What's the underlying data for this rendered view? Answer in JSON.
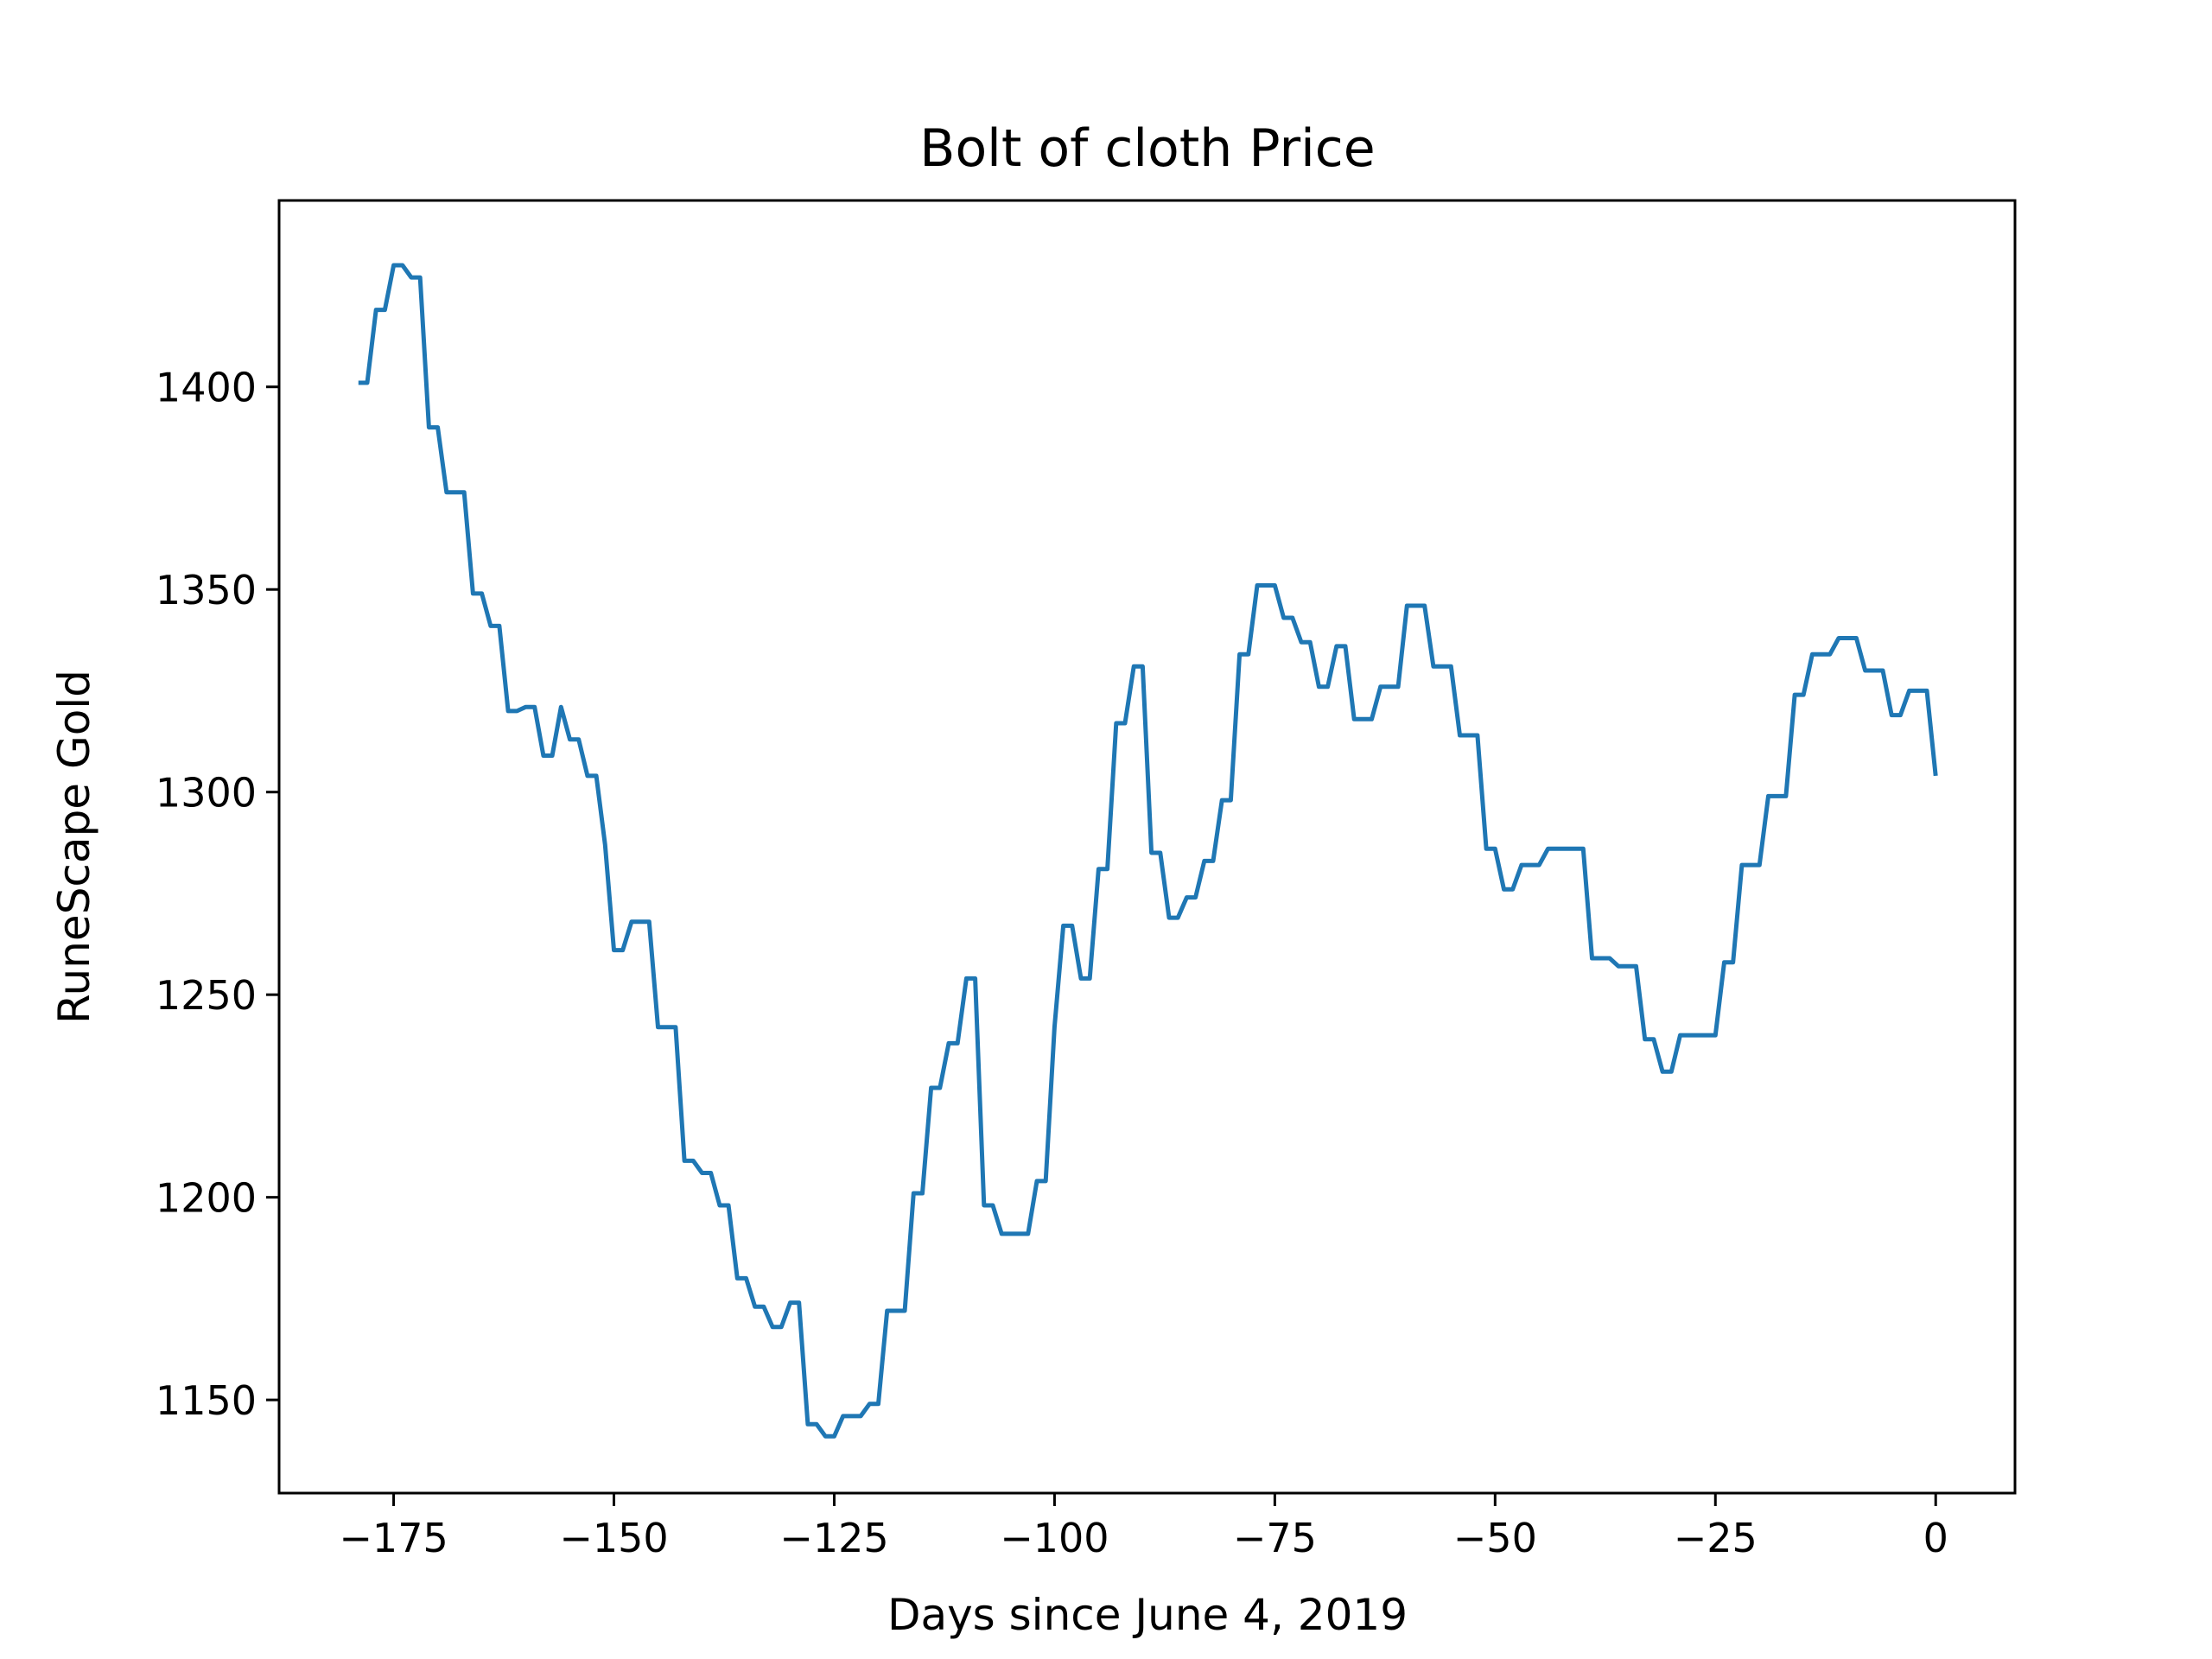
{
  "chart_data": {
    "type": "line",
    "title": "Bolt of cloth Price",
    "xlabel": "Days since June 4, 2019",
    "ylabel": "RuneScape Gold",
    "xlim": [
      -188,
      9
    ],
    "ylim": [
      1127,
      1446
    ],
    "xticks": [
      -175,
      -150,
      -125,
      -100,
      -75,
      -50,
      -25,
      0
    ],
    "xtick_labels": [
      "−175",
      "−150",
      "−125",
      "−100",
      "−75",
      "−50",
      "−25",
      "0"
    ],
    "yticks": [
      1150,
      1200,
      1250,
      1300,
      1350,
      1400
    ],
    "ytick_labels": [
      "1150",
      "1200",
      "1250",
      "1300",
      "1350",
      "1400"
    ],
    "grid": false,
    "line_color": "#1f77b4",
    "series": [
      {
        "name": "",
        "x": [
          -179,
          -178,
          -177,
          -176,
          -175,
          -174,
          -173,
          -172,
          -171,
          -170,
          -169,
          -168,
          -167,
          -166,
          -165,
          -164,
          -163,
          -162,
          -161,
          -160,
          -159,
          -158,
          -157,
          -156,
          -155,
          -154,
          -153,
          -152,
          -151,
          -150,
          -149,
          -148,
          -147,
          -146,
          -145,
          -144,
          -143,
          -142,
          -141,
          -140,
          -139,
          -138,
          -137,
          -136,
          -135,
          -134,
          -133,
          -132,
          -131,
          -130,
          -129,
          -128,
          -127,
          -126,
          -125,
          -124,
          -123,
          -122,
          -121,
          -120,
          -119,
          -118,
          -117,
          -116,
          -115,
          -114,
          -113,
          -112,
          -111,
          -110,
          -109,
          -108,
          -107,
          -106,
          -105,
          -104,
          -103,
          -102,
          -101,
          -100,
          -99,
          -98,
          -97,
          -96,
          -95,
          -94,
          -93,
          -92,
          -91,
          -90,
          -89,
          -88,
          -87,
          -86,
          -85,
          -84,
          -83,
          -82,
          -81,
          -80,
          -79,
          -78,
          -77,
          -76,
          -75,
          -74,
          -73,
          -72,
          -71,
          -70,
          -69,
          -68,
          -67,
          -66,
          -65,
          -64,
          -63,
          -62,
          -61,
          -60,
          -59,
          -58,
          -57,
          -56,
          -55,
          -54,
          -53,
          -52,
          -51,
          -50,
          -49,
          -48,
          -47,
          -46,
          -45,
          -44,
          -43,
          -42,
          -41,
          -40,
          -39,
          -38,
          -37,
          -36,
          -35,
          -34,
          -33,
          -32,
          -31,
          -30,
          -29,
          -28,
          -27,
          -26,
          -25,
          -24,
          -23,
          -22,
          -21,
          -20,
          -19,
          -18,
          -17,
          -16,
          -15,
          -14,
          -13,
          -12,
          -11,
          -10,
          -9,
          -8,
          -7,
          -6,
          -5,
          -4,
          -3,
          -2,
          -1,
          0
        ],
        "y": [
          1401,
          1401,
          1419,
          1419,
          1430,
          1430,
          1427,
          1427,
          1390,
          1390,
          1374,
          1374,
          1374,
          1349,
          1349,
          1341,
          1341,
          1320,
          1320,
          1321,
          1321,
          1309,
          1309,
          1321,
          1313,
          1313,
          1304,
          1304,
          1287,
          1261,
          1261,
          1268,
          1268,
          1268,
          1242,
          1242,
          1242,
          1209,
          1209,
          1206,
          1206,
          1198,
          1198,
          1180,
          1180,
          1173,
          1173,
          1168,
          1168,
          1174,
          1174,
          1144,
          1144,
          1141,
          1141,
          1146,
          1146,
          1146,
          1149,
          1149,
          1172,
          1172,
          1172,
          1201,
          1201,
          1227,
          1227,
          1238,
          1238,
          1254,
          1254,
          1198,
          1198,
          1191,
          1191,
          1191,
          1191,
          1204,
          1204,
          1242,
          1267,
          1267,
          1254,
          1254,
          1281,
          1281,
          1317,
          1317,
          1331,
          1331,
          1285,
          1285,
          1269,
          1269,
          1274,
          1274,
          1283,
          1283,
          1298,
          1298,
          1334,
          1334,
          1351,
          1351,
          1351,
          1343,
          1343,
          1337,
          1337,
          1326,
          1326,
          1336,
          1336,
          1318,
          1318,
          1318,
          1326,
          1326,
          1326,
          1346,
          1346,
          1346,
          1331,
          1331,
          1331,
          1314,
          1314,
          1314,
          1286,
          1286,
          1276,
          1276,
          1282,
          1282,
          1282,
          1286,
          1286,
          1286,
          1286,
          1286,
          1259,
          1259,
          1259,
          1257,
          1257,
          1257,
          1239,
          1239,
          1231,
          1231,
          1240,
          1240,
          1240,
          1240,
          1240,
          1258,
          1258,
          1282,
          1282,
          1282,
          1299,
          1299,
          1299,
          1324,
          1324,
          1334,
          1334,
          1334,
          1338,
          1338,
          1338,
          1330,
          1330,
          1330,
          1319,
          1319,
          1325,
          1325,
          1325,
          1304
        ]
      }
    ]
  }
}
